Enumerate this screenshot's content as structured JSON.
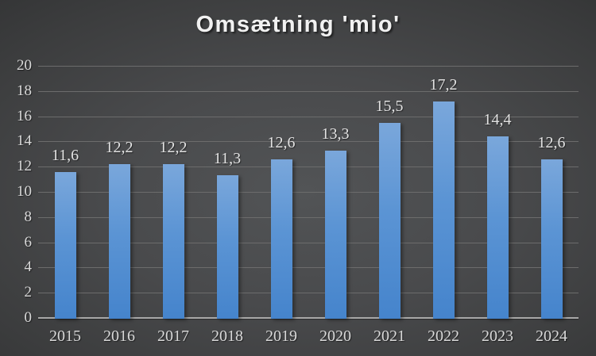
{
  "title": "Omsætning 'mio'",
  "chart_data": {
    "type": "bar",
    "title": "Omsætning 'mio'",
    "xlabel": "",
    "ylabel": "",
    "categories": [
      "2015",
      "2016",
      "2017",
      "2018",
      "2019",
      "2020",
      "2021",
      "2022",
      "2023",
      "2024"
    ],
    "values": [
      11.6,
      12.2,
      12.2,
      11.3,
      12.6,
      13.3,
      15.5,
      17.2,
      14.4,
      12.6
    ],
    "value_labels": [
      "11,6",
      "12,2",
      "12,2",
      "11,3",
      "12,6",
      "13,3",
      "15,5",
      "17,2",
      "14,4",
      "12,6"
    ],
    "decimal_separator": ",",
    "ylim": [
      0,
      20
    ],
    "ytick_step": 2,
    "ytick_labels": [
      "0",
      "2",
      "4",
      "6",
      "8",
      "10",
      "12",
      "14",
      "16",
      "18",
      "20"
    ],
    "grid": true,
    "legend": false,
    "colors": {
      "bar_top": "#7aa7db",
      "bar_bottom": "#4584cc",
      "background_center": "#4e5052",
      "background_edge": "#212223",
      "gridline": "#6c6c6c",
      "axis_line": "#a8a8a8",
      "label_text": "#d9d9d9",
      "title_text": "#f1f1f1"
    }
  }
}
